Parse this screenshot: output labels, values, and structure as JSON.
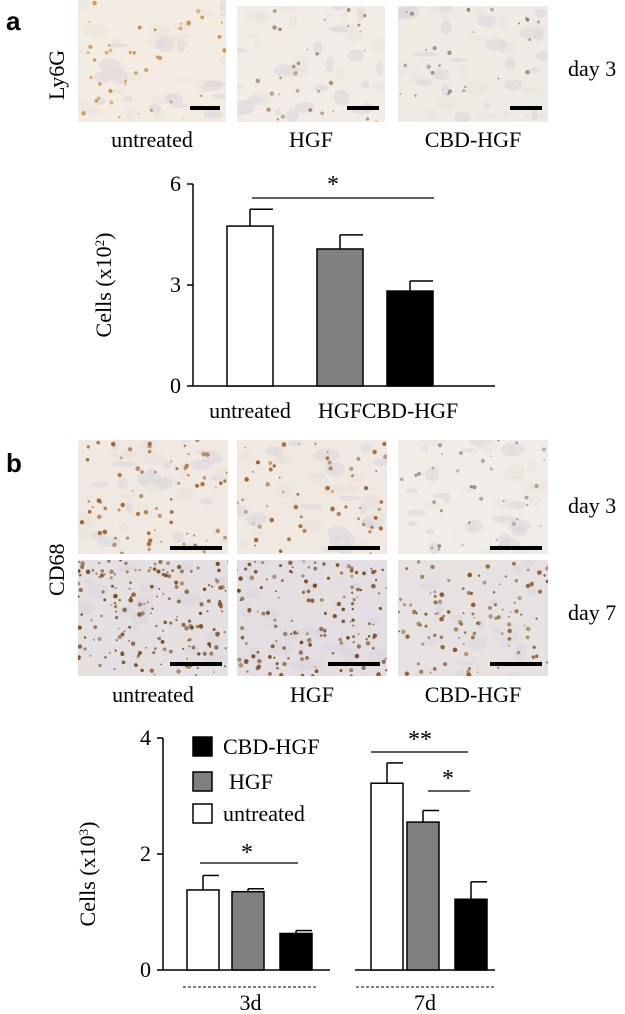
{
  "panel_a": {
    "letter": "a",
    "stain": "Ly6G",
    "day": "day 3",
    "groups": [
      "untreated",
      "HGF",
      "CBD-HGF"
    ]
  },
  "panel_b": {
    "letter": "b",
    "stain": "CD68",
    "days": [
      "day 3",
      "day 7"
    ],
    "groups": [
      "untreated",
      "HGF",
      "CBD-HGF"
    ]
  },
  "colors": {
    "untreated": "#ffffff",
    "HGF": "#808080",
    "CBD-HGF": "#000000"
  },
  "chart_data": [
    {
      "type": "bar",
      "categories": [
        "untreated",
        "HGF",
        "CBD-HGF"
      ],
      "values": [
        4.75,
        4.07,
        2.82
      ],
      "errors": [
        0.5,
        0.42,
        0.3
      ],
      "ylabel_main": "Cells (x10",
      "ylabel_sup": "2",
      "ylabel_end": ")",
      "yticks": [
        "0",
        "3",
        "6"
      ],
      "ylim": [
        0,
        6
      ],
      "significance": [
        {
          "from": 0,
          "to": 2,
          "label": "*"
        }
      ]
    },
    {
      "type": "bar",
      "groups": [
        "3d",
        "7d"
      ],
      "series": [
        {
          "name": "untreated",
          "values": [
            1.38,
            3.22
          ],
          "errors": [
            0.25,
            0.35
          ]
        },
        {
          "name": "HGF",
          "values": [
            1.35,
            2.55
          ],
          "errors": [
            0.05,
            0.2
          ]
        },
        {
          "name": "CBD-HGF",
          "values": [
            0.63,
            1.22
          ],
          "errors": [
            0.05,
            0.3
          ]
        }
      ],
      "legend_order": [
        "CBD-HGF",
        "HGF",
        "untreated"
      ],
      "ylabel_main": "Cells (x10",
      "ylabel_sup": "3",
      "ylabel_end": ")",
      "yticks": [
        "0",
        "2",
        "4"
      ],
      "ylim": [
        0,
        4
      ],
      "significance": [
        {
          "label": "*"
        },
        {
          "label": "**"
        },
        {
          "label": "*"
        }
      ]
    }
  ]
}
